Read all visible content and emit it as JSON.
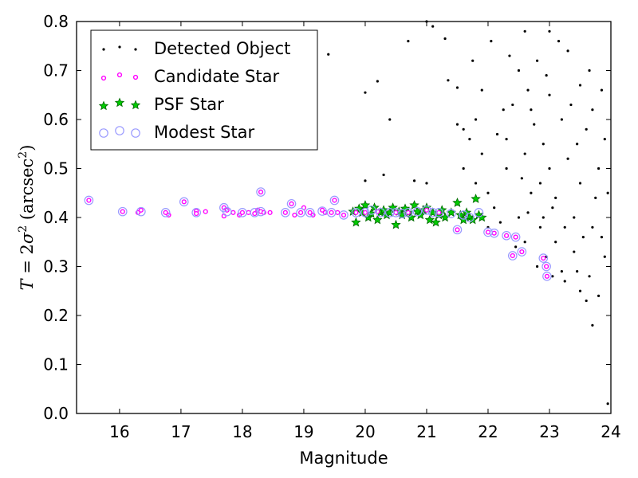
{
  "chart_data": {
    "type": "scatter",
    "xlabel": "Magnitude",
    "ylabel": "T = 2σ² (arcsec²)",
    "ylabel_parts": {
      "lhs": "T",
      "eq": " = 2",
      "sigma": "σ",
      "sq": "2",
      "unit": " (arcsec",
      "unit_sq": "2",
      "close": ")"
    },
    "xlim": [
      15.3,
      24.0
    ],
    "ylim": [
      0.0,
      0.8
    ],
    "xticks": [
      16,
      17,
      18,
      19,
      20,
      21,
      22,
      23,
      24
    ],
    "xtick_labels": [
      "16",
      "17",
      "18",
      "19",
      "20",
      "21",
      "22",
      "23",
      "24"
    ],
    "yticks": [
      0.0,
      0.1,
      0.2,
      0.3,
      0.4,
      0.5,
      0.6,
      0.7,
      0.8
    ],
    "ytick_labels": [
      "0.0",
      "0.1",
      "0.2",
      "0.3",
      "0.4",
      "0.5",
      "0.6",
      "0.7",
      "0.8"
    ],
    "grid": false,
    "legend_position": "top-left",
    "series": [
      {
        "name": "Detected Object",
        "marker": "dot",
        "color": "#000000",
        "points": [
          [
            18.3,
            0.452
          ],
          [
            19.5,
            0.435
          ],
          [
            22.9,
            0.317
          ],
          [
            22.96,
            0.28
          ],
          [
            21.5,
            0.375
          ],
          [
            22.4,
            0.322
          ],
          [
            20.0,
            0.475
          ],
          [
            20.8,
            0.475
          ],
          [
            21.0,
            0.47
          ],
          [
            21.8,
            0.47
          ],
          [
            20.3,
            0.487
          ],
          [
            20.0,
            0.655
          ],
          [
            20.2,
            0.678
          ],
          [
            20.4,
            0.6
          ],
          [
            19.4,
            0.733
          ],
          [
            20.7,
            0.76
          ],
          [
            21.0,
            0.8
          ],
          [
            21.1,
            0.79
          ],
          [
            21.3,
            0.765
          ],
          [
            21.35,
            0.68
          ],
          [
            21.5,
            0.665
          ],
          [
            21.5,
            0.59
          ],
          [
            21.6,
            0.58
          ],
          [
            21.7,
            0.56
          ],
          [
            21.8,
            0.6
          ],
          [
            21.6,
            0.5
          ],
          [
            21.9,
            0.53
          ],
          [
            22.0,
            0.45
          ],
          [
            22.0,
            0.38
          ],
          [
            22.1,
            0.42
          ],
          [
            22.2,
            0.39
          ],
          [
            22.3,
            0.5
          ],
          [
            22.3,
            0.56
          ],
          [
            22.4,
            0.63
          ],
          [
            22.5,
            0.4
          ],
          [
            22.5,
            0.7
          ],
          [
            22.6,
            0.78
          ],
          [
            22.6,
            0.53
          ],
          [
            22.6,
            0.35
          ],
          [
            22.7,
            0.45
          ],
          [
            22.7,
            0.62
          ],
          [
            22.8,
            0.3
          ],
          [
            22.8,
            0.72
          ],
          [
            22.9,
            0.4
          ],
          [
            22.9,
            0.55
          ],
          [
            23.0,
            0.5
          ],
          [
            23.0,
            0.65
          ],
          [
            23.0,
            0.78
          ],
          [
            23.1,
            0.35
          ],
          [
            23.1,
            0.44
          ],
          [
            23.2,
            0.6
          ],
          [
            23.2,
            0.29
          ],
          [
            23.3,
            0.74
          ],
          [
            23.3,
            0.52
          ],
          [
            23.4,
            0.4
          ],
          [
            23.4,
            0.33
          ],
          [
            23.5,
            0.67
          ],
          [
            23.5,
            0.25
          ],
          [
            23.5,
            0.47
          ],
          [
            23.6,
            0.58
          ],
          [
            23.6,
            0.23
          ],
          [
            23.7,
            0.18
          ],
          [
            23.7,
            0.62
          ],
          [
            23.7,
            0.38
          ],
          [
            23.8,
            0.24
          ],
          [
            23.8,
            0.5
          ],
          [
            23.9,
            0.56
          ],
          [
            23.9,
            0.32
          ],
          [
            23.95,
            0.02
          ],
          [
            23.95,
            0.45
          ],
          [
            22.25,
            0.62
          ],
          [
            22.35,
            0.73
          ],
          [
            22.55,
            0.48
          ],
          [
            22.65,
            0.66
          ],
          [
            22.75,
            0.59
          ],
          [
            22.85,
            0.47
          ],
          [
            22.95,
            0.69
          ],
          [
            23.05,
            0.42
          ],
          [
            23.15,
            0.76
          ],
          [
            23.25,
            0.38
          ],
          [
            23.35,
            0.63
          ],
          [
            23.45,
            0.55
          ],
          [
            23.55,
            0.36
          ],
          [
            23.65,
            0.7
          ],
          [
            23.75,
            0.44
          ],
          [
            23.85,
            0.66
          ],
          [
            21.9,
            0.66
          ],
          [
            22.05,
            0.76
          ],
          [
            22.15,
            0.57
          ],
          [
            21.75,
            0.72
          ],
          [
            22.45,
            0.34
          ],
          [
            22.95,
            0.32
          ],
          [
            23.05,
            0.28
          ],
          [
            23.25,
            0.27
          ],
          [
            23.45,
            0.29
          ],
          [
            23.65,
            0.28
          ],
          [
            23.85,
            0.36
          ],
          [
            22.85,
            0.38
          ],
          [
            22.65,
            0.41
          ]
        ]
      },
      {
        "name": "Candidate Star",
        "marker": "circle-small",
        "color": "#ff00ff",
        "points": [
          [
            15.5,
            0.435
          ],
          [
            16.05,
            0.412
          ],
          [
            16.3,
            0.41
          ],
          [
            16.35,
            0.415
          ],
          [
            16.75,
            0.41
          ],
          [
            16.8,
            0.405
          ],
          [
            17.05,
            0.432
          ],
          [
            17.25,
            0.413
          ],
          [
            17.25,
            0.408
          ],
          [
            17.4,
            0.412
          ],
          [
            17.7,
            0.42
          ],
          [
            17.7,
            0.403
          ],
          [
            17.75,
            0.415
          ],
          [
            17.85,
            0.41
          ],
          [
            17.95,
            0.405
          ],
          [
            18.0,
            0.41
          ],
          [
            18.1,
            0.41
          ],
          [
            18.2,
            0.408
          ],
          [
            18.25,
            0.415
          ],
          [
            18.3,
            0.412
          ],
          [
            18.3,
            0.452
          ],
          [
            18.35,
            0.41
          ],
          [
            18.45,
            0.41
          ],
          [
            18.7,
            0.41
          ],
          [
            18.8,
            0.428
          ],
          [
            18.85,
            0.405
          ],
          [
            18.95,
            0.41
          ],
          [
            19.0,
            0.42
          ],
          [
            19.1,
            0.41
          ],
          [
            19.15,
            0.405
          ],
          [
            19.3,
            0.415
          ],
          [
            19.35,
            0.41
          ],
          [
            19.45,
            0.41
          ],
          [
            19.5,
            0.435
          ],
          [
            19.55,
            0.41
          ],
          [
            19.65,
            0.405
          ],
          [
            19.85,
            0.41
          ],
          [
            20.0,
            0.41
          ],
          [
            20.2,
            0.412
          ],
          [
            20.5,
            0.41
          ],
          [
            20.7,
            0.41
          ],
          [
            21.0,
            0.415
          ],
          [
            21.2,
            0.41
          ],
          [
            21.5,
            0.375
          ],
          [
            22.0,
            0.37
          ],
          [
            22.1,
            0.368
          ],
          [
            22.3,
            0.363
          ],
          [
            22.4,
            0.322
          ],
          [
            22.45,
            0.36
          ],
          [
            22.55,
            0.33
          ],
          [
            22.9,
            0.317
          ],
          [
            22.95,
            0.3
          ],
          [
            22.96,
            0.28
          ]
        ]
      },
      {
        "name": "PSF Star",
        "marker": "star",
        "color": "#00cc00",
        "points": [
          [
            19.8,
            0.412
          ],
          [
            19.85,
            0.39
          ],
          [
            19.9,
            0.418
          ],
          [
            19.95,
            0.41
          ],
          [
            20.0,
            0.425
          ],
          [
            20.05,
            0.4
          ],
          [
            20.1,
            0.408
          ],
          [
            20.15,
            0.42
          ],
          [
            20.2,
            0.395
          ],
          [
            20.25,
            0.41
          ],
          [
            20.3,
            0.415
          ],
          [
            20.35,
            0.405
          ],
          [
            20.4,
            0.41
          ],
          [
            20.45,
            0.42
          ],
          [
            20.5,
            0.385
          ],
          [
            20.55,
            0.412
          ],
          [
            20.6,
            0.405
          ],
          [
            20.65,
            0.418
          ],
          [
            20.7,
            0.41
          ],
          [
            20.75,
            0.4
          ],
          [
            20.8,
            0.425
          ],
          [
            20.85,
            0.412
          ],
          [
            20.9,
            0.405
          ],
          [
            20.95,
            0.415
          ],
          [
            21.0,
            0.42
          ],
          [
            21.05,
            0.395
          ],
          [
            21.1,
            0.41
          ],
          [
            21.15,
            0.39
          ],
          [
            21.2,
            0.405
          ],
          [
            21.25,
            0.415
          ],
          [
            21.3,
            0.4
          ],
          [
            21.4,
            0.41
          ],
          [
            21.5,
            0.43
          ],
          [
            21.55,
            0.405
          ],
          [
            21.6,
            0.395
          ],
          [
            21.65,
            0.41
          ],
          [
            21.7,
            0.4
          ],
          [
            21.75,
            0.395
          ],
          [
            21.8,
            0.438
          ],
          [
            21.85,
            0.405
          ],
          [
            21.9,
            0.4
          ]
        ]
      },
      {
        "name": "Modest Star",
        "marker": "circle-open",
        "color": "#9999ff",
        "points": [
          [
            15.5,
            0.435
          ],
          [
            16.05,
            0.412
          ],
          [
            16.35,
            0.412
          ],
          [
            16.75,
            0.41
          ],
          [
            17.05,
            0.432
          ],
          [
            17.25,
            0.41
          ],
          [
            17.7,
            0.42
          ],
          [
            17.75,
            0.412
          ],
          [
            18.0,
            0.41
          ],
          [
            18.2,
            0.41
          ],
          [
            18.3,
            0.452
          ],
          [
            18.3,
            0.412
          ],
          [
            18.7,
            0.41
          ],
          [
            18.8,
            0.428
          ],
          [
            18.95,
            0.41
          ],
          [
            19.1,
            0.41
          ],
          [
            19.3,
            0.413
          ],
          [
            19.45,
            0.41
          ],
          [
            19.5,
            0.435
          ],
          [
            19.65,
            0.405
          ],
          [
            19.85,
            0.41
          ],
          [
            20.0,
            0.41
          ],
          [
            20.1,
            0.415
          ],
          [
            20.25,
            0.41
          ],
          [
            20.4,
            0.41
          ],
          [
            20.5,
            0.41
          ],
          [
            20.6,
            0.408
          ],
          [
            20.7,
            0.41
          ],
          [
            20.85,
            0.412
          ],
          [
            21.0,
            0.415
          ],
          [
            21.1,
            0.41
          ],
          [
            21.2,
            0.41
          ],
          [
            21.4,
            0.408
          ],
          [
            21.5,
            0.375
          ],
          [
            21.6,
            0.405
          ],
          [
            21.7,
            0.4
          ],
          [
            21.85,
            0.41
          ],
          [
            22.0,
            0.37
          ],
          [
            22.1,
            0.368
          ],
          [
            22.3,
            0.363
          ],
          [
            22.4,
            0.322
          ],
          [
            22.45,
            0.36
          ],
          [
            22.55,
            0.33
          ],
          [
            22.9,
            0.317
          ],
          [
            22.95,
            0.3
          ],
          [
            22.96,
            0.28
          ]
        ]
      }
    ]
  }
}
